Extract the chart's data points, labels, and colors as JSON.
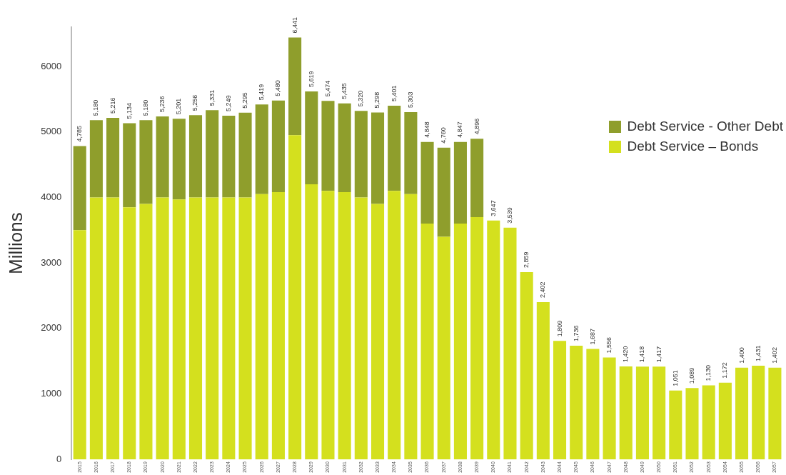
{
  "chart_data": {
    "type": "bar",
    "stacked": true,
    "ylabel": "Millions",
    "categories": [
      "2015",
      "2016",
      "2017",
      "2018",
      "2019",
      "2020",
      "2021",
      "2022",
      "2023",
      "2024",
      "2025",
      "2026",
      "2027",
      "2028",
      "2029",
      "2030",
      "2031",
      "2032",
      "2033",
      "2034",
      "2035",
      "2036",
      "2037",
      "2038",
      "2039",
      "2040",
      "2041",
      "2042",
      "2043",
      "2044",
      "2045",
      "2046",
      "2047",
      "2048",
      "2049",
      "2050",
      "2051",
      "2052",
      "2053",
      "2054",
      "2055",
      "2056",
      "2057"
    ],
    "series": [
      {
        "name": "Debt Service – Bonds",
        "color": "#d4e01e",
        "values": [
          3500,
          4000,
          4000,
          3850,
          3900,
          4000,
          3970,
          4000,
          4000,
          4000,
          4000,
          4050,
          4080,
          4950,
          4200,
          4100,
          4080,
          4000,
          3900,
          4100,
          4050,
          3600,
          3400,
          3600,
          3700,
          3647,
          3539,
          2859,
          2402,
          1809,
          1736,
          1687,
          1556,
          1420,
          1418,
          1417,
          1051,
          1089,
          1130,
          1172,
          1400,
          1431,
          1402
        ]
      },
      {
        "name": "Debt Service - Other Debt",
        "color": "#8f9e2c",
        "values": [
          1285,
          1180,
          1216,
          1284,
          1280,
          1236,
          1231,
          1256,
          1331,
          1249,
          1295,
          1369,
          1400,
          1491,
          1419,
          1374,
          1355,
          1320,
          1398,
          1301,
          1253,
          1248,
          1360,
          1247,
          1196,
          0,
          0,
          0,
          0,
          0,
          0,
          0,
          0,
          0,
          0,
          0,
          0,
          0,
          0,
          0,
          0,
          0,
          0
        ]
      }
    ],
    "totals": [
      "4,785",
      "5,180",
      "5,216",
      "5,134",
      "5,180",
      "5,236",
      "5,201",
      "5,256",
      "5,331",
      "5,249",
      "5,295",
      "5,419",
      "5,480",
      "6,441",
      "5,619",
      "5,474",
      "5,435",
      "5,320",
      "5,298",
      "5,401",
      "5,303",
      "4,848",
      "4,760",
      "4,847",
      "4,896",
      "3,647",
      "3,539",
      "2,859",
      "2,402",
      "1,809",
      "1,736",
      "1,687",
      "1,556",
      "1,420",
      "1,418",
      "1,417",
      "1,051",
      "1,089",
      "1,130",
      "1,172",
      "1,400",
      "1,431",
      "1,402"
    ],
    "ylim": [
      0,
      6600
    ],
    "yticks": [
      0,
      1000,
      2000,
      3000,
      4000,
      5000,
      6000
    ],
    "grid": false,
    "legend": "top right"
  }
}
